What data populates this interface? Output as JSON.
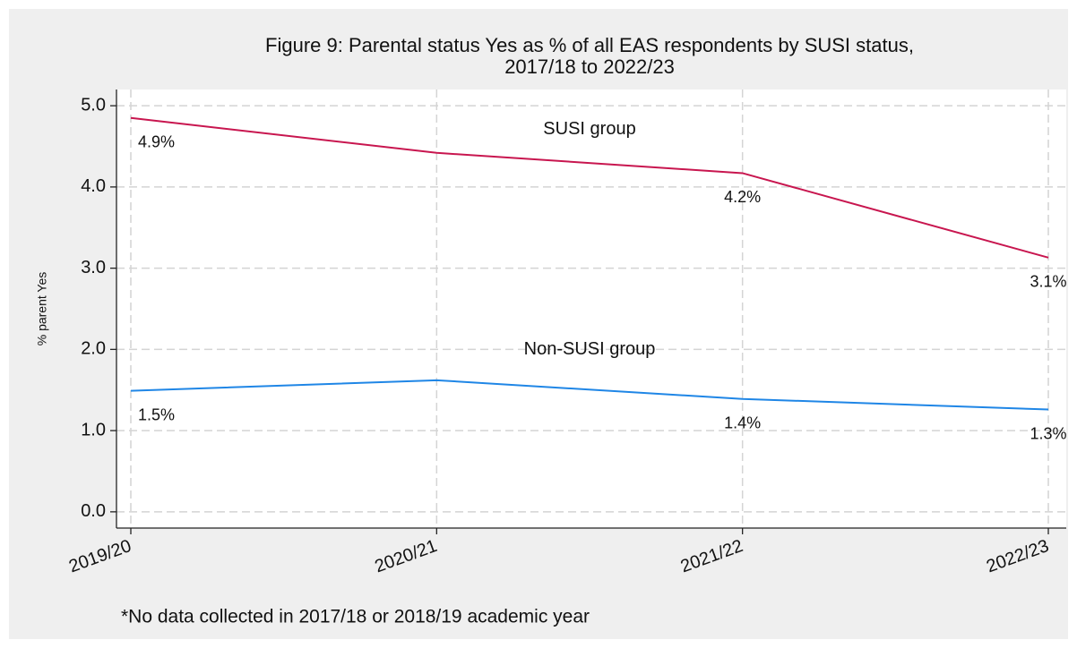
{
  "chart_data": {
    "type": "line",
    "title": [
      "Figure 9: Parental status Yes as % of all EAS respondents by SUSI status,",
      "2017/18 to 2022/23"
    ],
    "ylabel": "% parent Yes",
    "note": "*No  data collected in 2017/18 or 2018/19 academic year",
    "categories": [
      "2019/20",
      "2020/21",
      "2021/22",
      "2022/23"
    ],
    "series": [
      {
        "name": "SUSI group",
        "color": "#c8164f",
        "values": [
          4.85,
          4.42,
          4.17,
          3.13
        ],
        "value_labels": [
          "4.9%",
          null,
          "4.2%",
          "3.1%"
        ]
      },
      {
        "name": "Non-SUSI group",
        "color": "#1f86e6",
        "values": [
          1.49,
          1.62,
          1.39,
          1.26
        ],
        "value_labels": [
          "1.5%",
          null,
          "1.4%",
          "1.3%"
        ]
      }
    ],
    "ylim": [
      -0.2,
      5.2
    ],
    "yticks": [
      {
        "value": 0,
        "label": "0.0"
      },
      {
        "value": 1,
        "label": "1.0"
      },
      {
        "value": 2,
        "label": "2.0"
      },
      {
        "value": 3,
        "label": "3.0"
      },
      {
        "value": 4,
        "label": "4.0"
      },
      {
        "value": 5,
        "label": "5.0"
      }
    ],
    "grid": true
  }
}
